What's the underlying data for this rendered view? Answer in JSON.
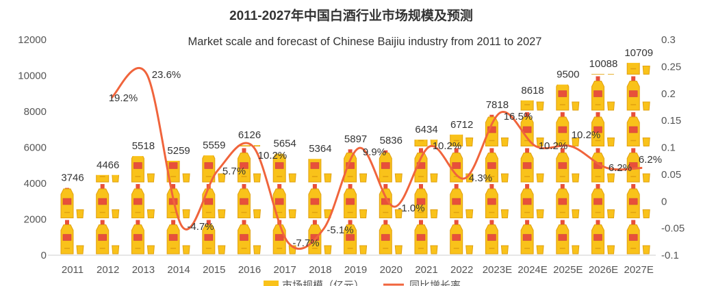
{
  "chart_data": {
    "type": "bar",
    "title": "2011-2027年中国白酒行业市场规模及预测",
    "subtitle": "Market scale and forecast of Chinese Baijiu industry from 2011 to 2027",
    "categories": [
      "2011",
      "2012",
      "2013",
      "2014",
      "2015",
      "2016",
      "2017",
      "2018",
      "2019",
      "2020",
      "2021",
      "2022",
      "2023E",
      "2024E",
      "2025E",
      "2026E",
      "2027E"
    ],
    "series": [
      {
        "name": "市场规模（亿元）",
        "type": "pictorial-bar",
        "axis": "left",
        "values": [
          3746,
          4466,
          5518,
          5259,
          5559,
          6126,
          5654,
          5364,
          5897,
          5836,
          6434,
          6712,
          7818,
          8618,
          9500,
          10088,
          10709
        ]
      },
      {
        "name": "同比增长率",
        "type": "line",
        "axis": "right",
        "color": "#f0643c",
        "values": [
          null,
          0.192,
          0.236,
          -0.047,
          0.057,
          0.102,
          -0.077,
          -0.051,
          0.099,
          -0.01,
          0.102,
          0.043,
          0.165,
          0.102,
          0.102,
          0.062,
          0.062
        ],
        "labels": [
          null,
          "19.2%",
          "23.6%",
          "-4.7%",
          "5.7%",
          "10.2%",
          "-7.7%",
          "-5.1%",
          "9.9%",
          "-1.0%",
          "10.2%",
          "4.3%",
          "16.5%",
          "10.2%",
          "10.2%",
          "6.2%",
          "6.2%"
        ]
      }
    ],
    "ylim_left": [
      0,
      12000
    ],
    "yticks_left": [
      "0",
      "2000",
      "4000",
      "6000",
      "8000",
      "10000",
      "12000"
    ],
    "ylim_right": [
      -0.1,
      0.3
    ],
    "yticks_right": [
      "-0.1",
      "-0.05",
      "0",
      "0.05",
      "0.1",
      "0.15",
      "0.2",
      "0.25",
      "0.3"
    ],
    "legend": "bottom",
    "colors": {
      "bottle": "#f9c21a",
      "bottle_dark": "#e0a010",
      "label": "#e8503a",
      "line": "#f0643c"
    }
  }
}
